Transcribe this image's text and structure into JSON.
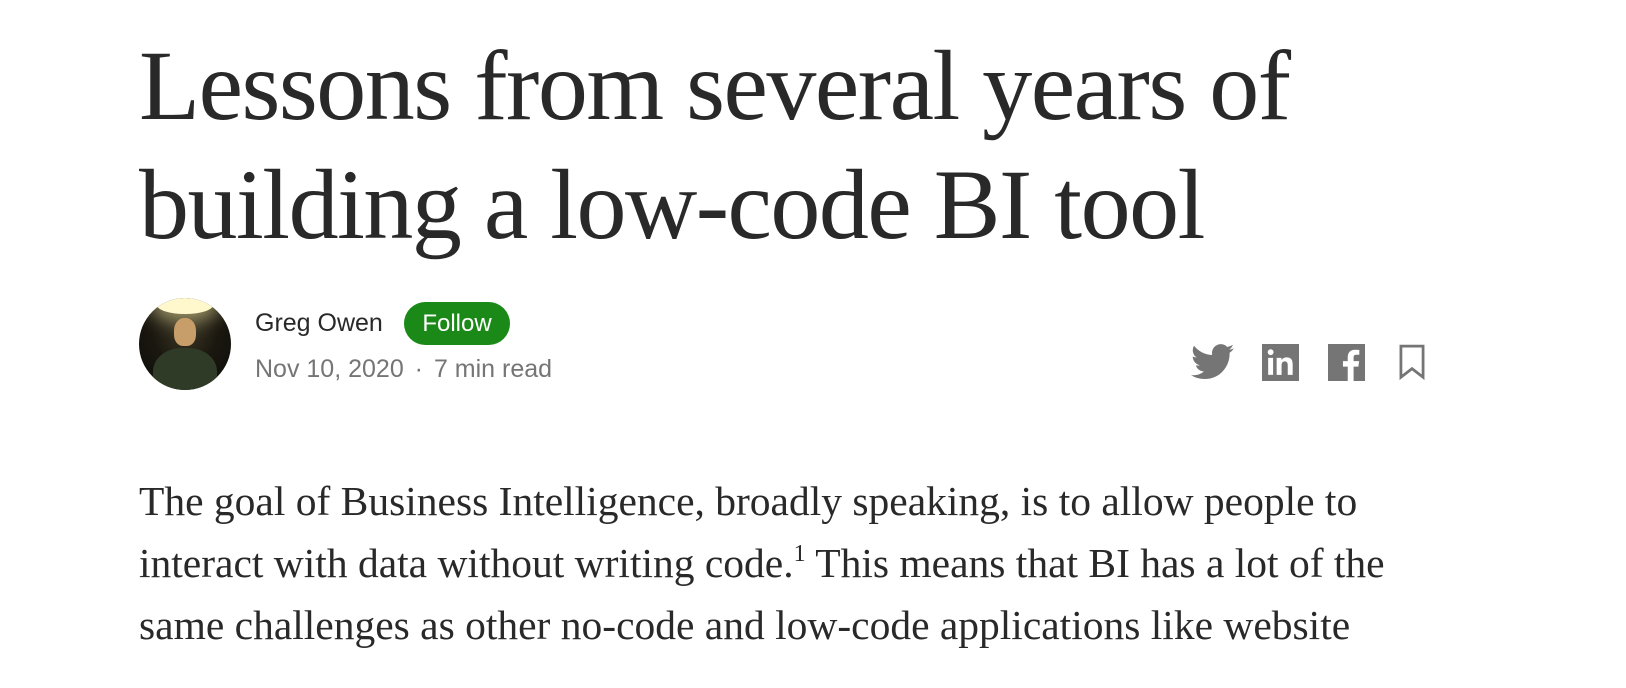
{
  "article": {
    "title": "Lessons from several years of building a low-code BI tool",
    "author": {
      "name": "Greg Owen",
      "avatar_icon": "author-avatar-photo",
      "follow_label": "Follow"
    },
    "meta": {
      "date": "Nov 10, 2020",
      "separator": "·",
      "read_time": "7 min read"
    },
    "share": {
      "icons": [
        "twitter-icon",
        "linkedin-icon",
        "facebook-icon",
        "bookmark-icon"
      ],
      "icon_color": "#757575"
    },
    "body": {
      "paragraph_1_part_1": "The goal of Business Intelligence, broadly speaking, is to allow people to interact with data without writing code.",
      "footnote_ref": "1",
      "paragraph_1_part_2": " This means that BI has a lot of the same challenges as other no-code and low-code applications like website"
    }
  },
  "colors": {
    "text": "#292929",
    "muted": "#757575",
    "follow_button": "#1a8917",
    "background": "#ffffff"
  }
}
